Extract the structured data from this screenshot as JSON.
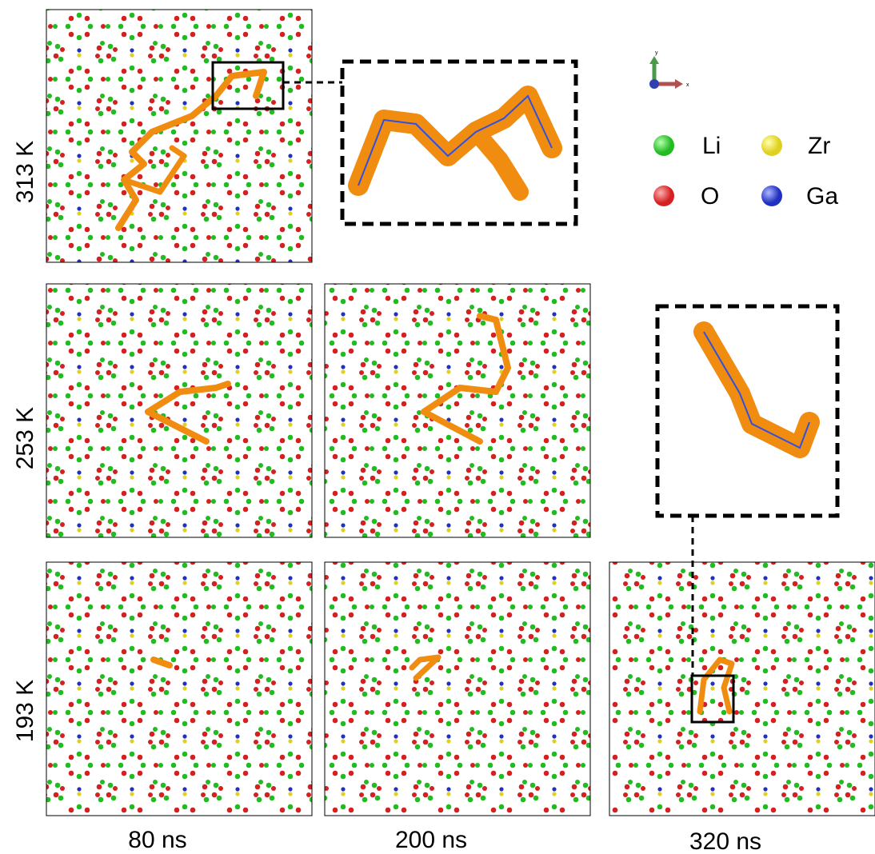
{
  "rows": [
    {
      "label": "313 K"
    },
    {
      "label": "253 K"
    },
    {
      "label": "193 K"
    }
  ],
  "columns": [
    {
      "label": "80 ns"
    },
    {
      "label": "200 ns"
    },
    {
      "label": "320 ns"
    }
  ],
  "legend": [
    {
      "label": "Li",
      "color": "#22bb22"
    },
    {
      "label": "Zr",
      "color": "#e0d020"
    },
    {
      "label": "O",
      "color": "#d42020"
    },
    {
      "label": "Ga",
      "color": "#2030c0"
    }
  ],
  "axes": {
    "y": "y",
    "x": "x"
  }
}
